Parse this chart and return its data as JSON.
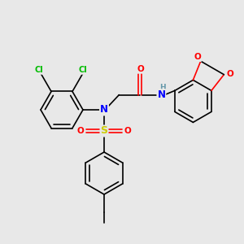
{
  "bg_color": "#e8e8e8",
  "bond_color": "#000000",
  "C": "#000000",
  "N": "#0000ff",
  "O": "#ff0000",
  "S": "#cccc00",
  "Cl": "#00bb00",
  "H": "#6699aa",
  "lw": 1.2,
  "fs": 7.5
}
